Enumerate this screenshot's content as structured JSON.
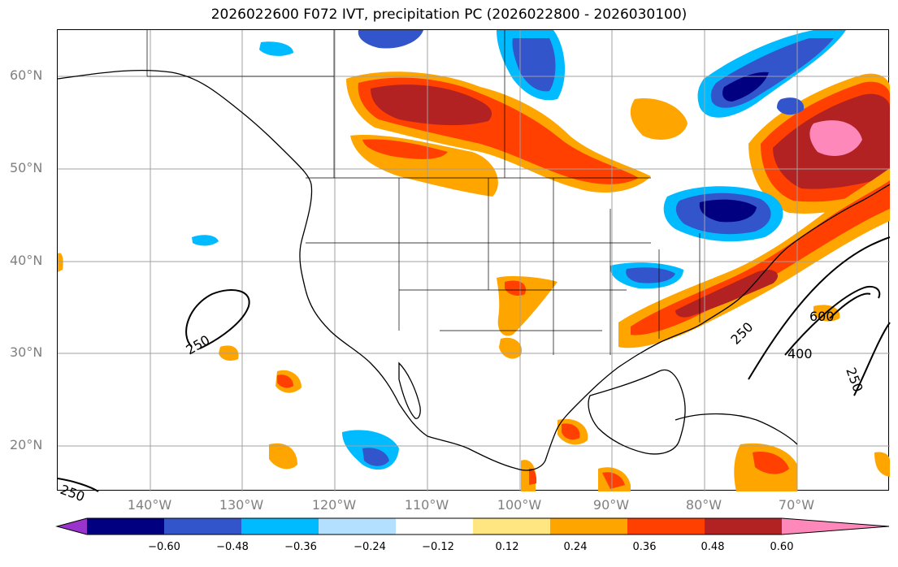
{
  "title": "2026022600 F072 IVT, precipitation PC (2026022800 - 2026030100)",
  "lat_labels": [
    "60°N",
    "50°N",
    "40°N",
    "30°N",
    "20°N"
  ],
  "lon_labels": [
    "140°W",
    "130°W",
    "120°W",
    "110°W",
    "100°W",
    "90°W",
    "80°W",
    "70°W"
  ],
  "contour_labels": [
    "250",
    "250",
    "400",
    "600",
    "250",
    "250"
  ],
  "colorbar": {
    "ticks": [
      "−0.60",
      "−0.48",
      "−0.36",
      "−0.24",
      "−0.12",
      "0.12",
      "0.24",
      "0.36",
      "0.48",
      "0.60"
    ],
    "colors": [
      "#9933cc",
      "#000080",
      "#3355cc",
      "#00bbff",
      "#b3e0ff",
      "#ffffff",
      "#ffe680",
      "#ffa500",
      "#ff4000",
      "#b22222",
      "#ff88bb"
    ],
    "extend": "both"
  }
}
